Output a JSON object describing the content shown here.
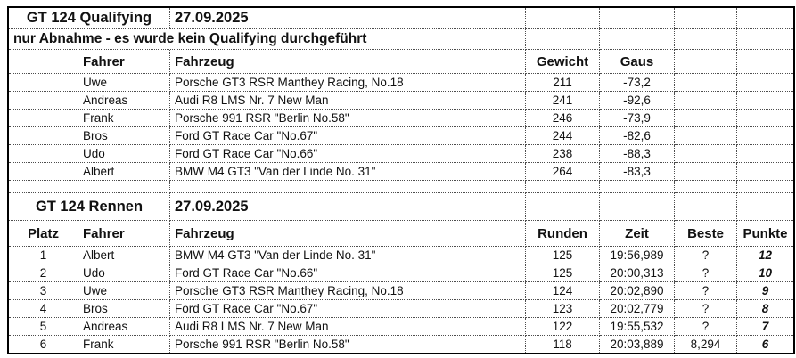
{
  "qualifying": {
    "title": "GT 124 Qualifying",
    "date": "27.09.2025",
    "note": "nur Abnahme - es wurde kein Qualifying durchgeführt",
    "headers": {
      "fahrer": "Fahrer",
      "fahrzeug": "Fahrzeug",
      "gewicht": "Gewicht",
      "gaus": "Gaus"
    },
    "rows": [
      {
        "fahrer": "Uwe",
        "fahrzeug": "Porsche GT3 RSR Manthey Racing, No.18",
        "gewicht": "211",
        "gaus": "-73,2"
      },
      {
        "fahrer": "Andreas",
        "fahrzeug": "Audi R8 LMS Nr. 7 New Man",
        "gewicht": "241",
        "gaus": "-92,6"
      },
      {
        "fahrer": "Frank",
        "fahrzeug": "Porsche 991 RSR \"Berlin No.58\"",
        "gewicht": "246",
        "gaus": "-73,9"
      },
      {
        "fahrer": "Bros",
        "fahrzeug": "Ford GT Race Car \"No.67\"",
        "gewicht": "244",
        "gaus": "-82,6"
      },
      {
        "fahrer": "Udo",
        "fahrzeug": "Ford GT Race Car \"No.66\"",
        "gewicht": "238",
        "gaus": "-88,3"
      },
      {
        "fahrer": "Albert",
        "fahrzeug": "BMW M4 GT3 \"Van der Linde No. 31\"",
        "gewicht": "264",
        "gaus": "-83,3"
      }
    ]
  },
  "race": {
    "title": "GT 124 Rennen",
    "date": "27.09.2025",
    "headers": {
      "platz": "Platz",
      "fahrer": "Fahrer",
      "fahrzeug": "Fahrzeug",
      "runden": "Runden",
      "zeit": "Zeit",
      "beste": "Beste",
      "punkte": "Punkte"
    },
    "rows": [
      {
        "platz": "1",
        "fahrer": "Albert",
        "fahrzeug": "BMW M4 GT3 \"Van der Linde No. 31\"",
        "runden": "125",
        "zeit": "19:56,989",
        "beste": "?",
        "punkte": "12"
      },
      {
        "platz": "2",
        "fahrer": "Udo",
        "fahrzeug": "Ford GT Race Car \"No.66\"",
        "runden": "125",
        "zeit": "20:00,313",
        "beste": "?",
        "punkte": "10"
      },
      {
        "platz": "3",
        "fahrer": "Uwe",
        "fahrzeug": "Porsche GT3 RSR Manthey Racing, No.18",
        "runden": "124",
        "zeit": "20:02,890",
        "beste": "?",
        "punkte": "9"
      },
      {
        "platz": "4",
        "fahrer": "Bros",
        "fahrzeug": "Ford GT Race Car \"No.67\"",
        "runden": "123",
        "zeit": "20:02,779",
        "beste": "?",
        "punkte": "8"
      },
      {
        "platz": "5",
        "fahrer": "Andreas",
        "fahrzeug": "Audi R8 LMS Nr. 7 New Man",
        "runden": "122",
        "zeit": "19:55,532",
        "beste": "?",
        "punkte": "7"
      },
      {
        "platz": "6",
        "fahrer": "Frank",
        "fahrzeug": "Porsche 991 RSR \"Berlin No.58\"",
        "runden": "118",
        "zeit": "20:03,889",
        "beste": "8,294",
        "punkte": "6"
      }
    ]
  },
  "colors": {
    "outer_border": "#000000",
    "gridline": "#4d4d4d",
    "text": "#111111",
    "background": "#ffffff"
  }
}
